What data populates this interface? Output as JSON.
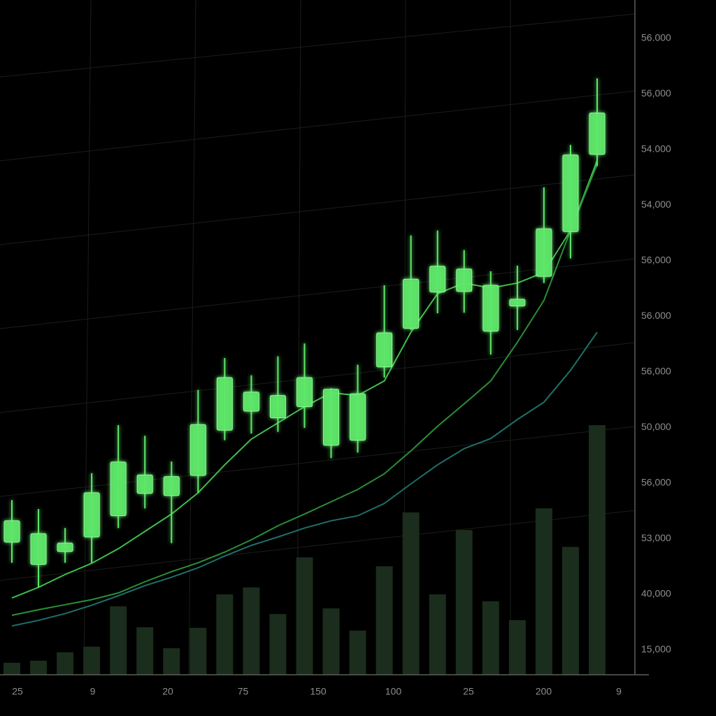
{
  "chart_data": {
    "type": "candlestick",
    "candles": {
      "open": [
        23.1,
        24.6,
        21.4,
        24.0,
        27.8,
        35.1,
        31.4,
        35.0,
        43.1,
        49.9,
        45.3,
        47.3,
        50.4,
        41.3,
        54.4,
        61.3,
        67.8,
        71.9,
        69.0,
        65.3,
        70.6,
        78.6,
        92.4
      ],
      "high": [
        30.6,
        29.0,
        25.6,
        35.4,
        44.0,
        42.1,
        37.5,
        50.3,
        56.0,
        52.9,
        56.3,
        58.6,
        50.6,
        54.8,
        69.0,
        77.9,
        78.8,
        75.3,
        71.5,
        72.5,
        86.5,
        94.1,
        106.0
      ],
      "low": [
        19.4,
        15.0,
        19.4,
        19.4,
        25.6,
        29.1,
        22.9,
        31.9,
        41.3,
        42.5,
        42.8,
        43.5,
        38.1,
        39.1,
        52.5,
        61.0,
        64.0,
        64.1,
        56.6,
        61.0,
        69.4,
        73.8,
        90.3
      ],
      "close": [
        26.9,
        19.1,
        22.9,
        31.9,
        37.4,
        31.8,
        34.8,
        44.1,
        52.5,
        46.5,
        49.3,
        52.5,
        40.4,
        49.6,
        60.5,
        70.1,
        72.4,
        67.9,
        60.8,
        66.5,
        79.1,
        92.3,
        99.8
      ],
      "color": "#5ee86a"
    },
    "lines": [
      {
        "color": "#3fbf4a",
        "values": [
          13.1,
          15.0,
          17.3,
          19.3,
          21.9,
          25.0,
          28.1,
          31.9,
          36.9,
          41.5,
          44.4,
          47.3,
          49.8,
          49.3,
          51.9,
          60.6,
          67.5,
          69.4,
          68.5,
          69.4,
          71.3,
          78.8,
          91.3
        ]
      },
      {
        "color": "#2a8f36",
        "values": [
          10.0,
          11.0,
          11.9,
          12.8,
          14.0,
          16.0,
          17.8,
          19.4,
          21.3,
          23.5,
          26.0,
          28.1,
          30.3,
          32.5,
          35.3,
          39.4,
          43.8,
          47.8,
          51.9,
          58.8,
          66.3,
          78.8,
          90.6
        ]
      },
      {
        "color": "#1f6f6a",
        "values": [
          8.1,
          9.1,
          10.3,
          11.8,
          13.5,
          15.3,
          16.8,
          18.5,
          20.6,
          22.5,
          24.0,
          25.6,
          26.9,
          27.8,
          30.0,
          33.5,
          36.9,
          39.8,
          41.6,
          45.0,
          48.1,
          53.8,
          60.6
        ]
      }
    ],
    "volume": [
      4.7,
      5.5,
      8.8,
      11.0,
      26.8,
      18.6,
      10.4,
      18.4,
      31.5,
      34.2,
      23.8,
      46.0,
      26.0,
      17.3,
      42.5,
      63.6,
      31.5,
      56.7,
      28.8,
      21.4,
      65.2,
      50.1,
      97.8
    ],
    "volume_color": "#1b2d1c",
    "ylim": [
      0,
      120
    ],
    "volume_ylim": [
      0,
      100
    ],
    "y_axis_labels": [
      "56.000",
      "56,000",
      "54.000",
      "54,000",
      "56,000",
      "56.000",
      "56,000",
      "50,000",
      "56,000",
      "53,000",
      "40,000",
      "15,000"
    ],
    "x_axis_labels": [
      "25",
      "9",
      "20",
      "75",
      "150",
      "100",
      "25",
      "200",
      "9"
    ]
  }
}
